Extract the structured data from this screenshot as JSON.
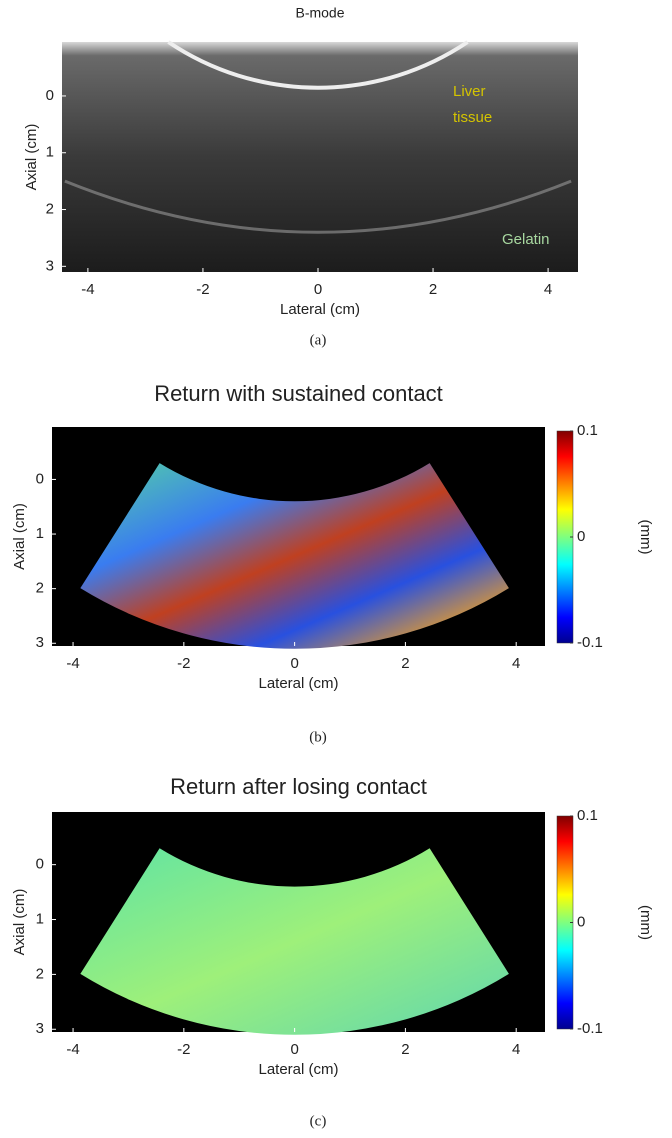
{
  "chart_data": [
    {
      "type": "image",
      "title": "B-mode",
      "xlabel": "Lateral (cm)",
      "ylabel": "Axial (cm)",
      "xlim": [
        -4.45,
        4.52
      ],
      "ylim": [
        -0.95,
        3.1
      ],
      "xticks": [
        -4,
        -2,
        0,
        2,
        4
      ],
      "yticks": [
        0,
        1,
        2,
        3
      ],
      "annotations": [
        "Liver",
        "tissue",
        "Gelatin"
      ],
      "caption": "(a)"
    },
    {
      "type": "image",
      "title": "Return with sustained contact",
      "xlabel": "Lateral (cm)",
      "ylabel": "Axial (cm)",
      "xlim": [
        -4.38,
        4.52
      ],
      "ylim": [
        -0.96,
        3.05
      ],
      "xticks": [
        -4,
        -2,
        0,
        2,
        4
      ],
      "yticks": [
        0,
        1,
        2,
        3
      ],
      "colorbar": {
        "label": "(mm)",
        "clim": [
          -0.1,
          0.1
        ],
        "ticks": [
          0.1,
          0,
          -0.1
        ]
      },
      "caption": "(b)"
    },
    {
      "type": "image",
      "title": "Return after losing contact",
      "xlabel": "Lateral (cm)",
      "ylabel": "Axial (cm)",
      "xlim": [
        -4.38,
        4.52
      ],
      "ylim": [
        -0.96,
        3.05
      ],
      "xticks": [
        -4,
        -2,
        0,
        2,
        4
      ],
      "yticks": [
        0,
        1,
        2,
        3
      ],
      "colorbar": {
        "label": "(mm)",
        "clim": [
          -0.1,
          0.1
        ],
        "ticks": [
          0.1,
          0,
          -0.1
        ]
      },
      "caption": "(c)"
    }
  ]
}
